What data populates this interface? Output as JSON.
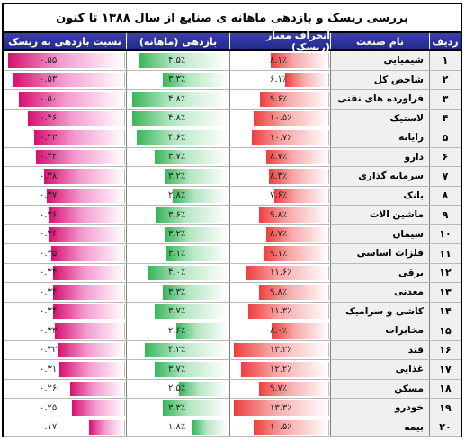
{
  "title": "بررسی ریسک و بازدهی ماهانه ی صنایع از سال ۱۳۸۸ تا کنون",
  "headers": {
    "index": "ردیف",
    "industry": "نام صنعت",
    "risk": "انحراف معیار (ریسک)",
    "return": "بازدهی (ماهانه)",
    "ratio": "نسبت بازدهی به ریسک"
  },
  "colors": {
    "header": "#2b3194",
    "risk": "#ee3e3e",
    "return": "#38b65a",
    "ratio": "#d6106e"
  },
  "rows": [
    {
      "idx": "۱",
      "name": "شیمیایی",
      "risk": "۸.۱٪",
      "ret": "۴.۵٪",
      "ratio": "۰.۵۵",
      "risk_pct": 8.1,
      "ret_pct": 4.5,
      "ratio_num": 0.55
    },
    {
      "idx": "۲",
      "name": "شاخص کل",
      "risk": "۶.۱٪",
      "ret": "۳.۳٪",
      "ratio": "۰.۵۳",
      "risk_pct": 6.1,
      "ret_pct": 3.3,
      "ratio_num": 0.53
    },
    {
      "idx": "۳",
      "name": "فراورده های نفتی",
      "risk": "۹.۶٪",
      "ret": "۴.۸٪",
      "ratio": "۰.۵۰",
      "risk_pct": 9.6,
      "ret_pct": 4.8,
      "ratio_num": 0.5
    },
    {
      "idx": "۴",
      "name": "لاستیک",
      "risk": "۱۰.۵٪",
      "ret": "۴.۸٪",
      "ratio": "۰.۴۶",
      "risk_pct": 10.5,
      "ret_pct": 4.8,
      "ratio_num": 0.46
    },
    {
      "idx": "۵",
      "name": "رایانه",
      "risk": "۱۰.۷٪",
      "ret": "۴.۶٪",
      "ratio": "۰.۴۳",
      "risk_pct": 10.7,
      "ret_pct": 4.6,
      "ratio_num": 0.43
    },
    {
      "idx": "۶",
      "name": "دارو",
      "risk": "۸.۷٪",
      "ret": "۳.۷٪",
      "ratio": "۰.۴۲",
      "risk_pct": 8.7,
      "ret_pct": 3.7,
      "ratio_num": 0.42
    },
    {
      "idx": "۷",
      "name": "سرمایه گذاری",
      "risk": "۸.۴٪",
      "ret": "۳.۲٪",
      "ratio": "۰.۳۸",
      "risk_pct": 8.4,
      "ret_pct": 3.2,
      "ratio_num": 0.38
    },
    {
      "idx": "۸",
      "name": "بانک",
      "risk": "۷.۶٪",
      "ret": "۲.۸٪",
      "ratio": "۰.۳۷",
      "risk_pct": 7.6,
      "ret_pct": 2.8,
      "ratio_num": 0.37
    },
    {
      "idx": "۹",
      "name": "ماشین الات",
      "risk": "۹.۸٪",
      "ret": "۳.۶٪",
      "ratio": "۰.۳۶",
      "risk_pct": 9.8,
      "ret_pct": 3.6,
      "ratio_num": 0.36
    },
    {
      "idx": "۱۰",
      "name": "سیمان",
      "risk": "۸.۷٪",
      "ret": "۳.۲٪",
      "ratio": "۰.۳۶",
      "risk_pct": 8.7,
      "ret_pct": 3.2,
      "ratio_num": 0.36
    },
    {
      "idx": "۱۱",
      "name": "فلزات اساسی",
      "risk": "۹.۱٪",
      "ret": "۳.۱٪",
      "ratio": "۰.۳۵",
      "risk_pct": 9.1,
      "ret_pct": 3.1,
      "ratio_num": 0.35
    },
    {
      "idx": "۱۲",
      "name": "برقی",
      "risk": "۱۱.۶٪",
      "ret": "۴.۰٪",
      "ratio": "۰.۳۴",
      "risk_pct": 11.6,
      "ret_pct": 4.0,
      "ratio_num": 0.34
    },
    {
      "idx": "۱۳",
      "name": "معدنی",
      "risk": "۹.۸٪",
      "ret": "۳.۳٪",
      "ratio": "۰.۳۴",
      "risk_pct": 9.8,
      "ret_pct": 3.3,
      "ratio_num": 0.34
    },
    {
      "idx": "۱۴",
      "name": "کاشی و سرامیک",
      "risk": "۱۱.۳٪",
      "ret": "۳.۷٪",
      "ratio": "۰.۳۴",
      "risk_pct": 11.3,
      "ret_pct": 3.7,
      "ratio_num": 0.34
    },
    {
      "idx": "۱۵",
      "name": "مخابرات",
      "risk": "۸.۰٪",
      "ret": "۲.۶٪",
      "ratio": "۰.۳۳",
      "risk_pct": 8.0,
      "ret_pct": 2.6,
      "ratio_num": 0.33
    },
    {
      "idx": "۱۶",
      "name": "قند",
      "risk": "۱۳.۲٪",
      "ret": "۴.۲٪",
      "ratio": "۰.۳۲",
      "risk_pct": 13.2,
      "ret_pct": 4.2,
      "ratio_num": 0.32
    },
    {
      "idx": "۱۷",
      "name": "غذایی",
      "risk": "۱۲.۲٪",
      "ret": "۳.۷٪",
      "ratio": "۰.۳۱",
      "risk_pct": 12.2,
      "ret_pct": 3.7,
      "ratio_num": 0.31
    },
    {
      "idx": "۱۸",
      "name": "مسکن",
      "risk": "۹.۷٪",
      "ret": "۲.۵٪",
      "ratio": "۰.۲۶",
      "risk_pct": 9.7,
      "ret_pct": 2.5,
      "ratio_num": 0.26
    },
    {
      "idx": "۱۹",
      "name": "خودرو",
      "risk": "۱۳.۳٪",
      "ret": "۳.۳٪",
      "ratio": "۰.۲۵",
      "risk_pct": 13.3,
      "ret_pct": 3.3,
      "ratio_num": 0.25
    },
    {
      "idx": "۲۰",
      "name": "بیمه",
      "risk": "۱۰.۵٪",
      "ret": "۱.۸٪",
      "ratio": "۰.۱۷",
      "risk_pct": 10.5,
      "ret_pct": 1.8,
      "ratio_num": 0.17
    }
  ]
}
